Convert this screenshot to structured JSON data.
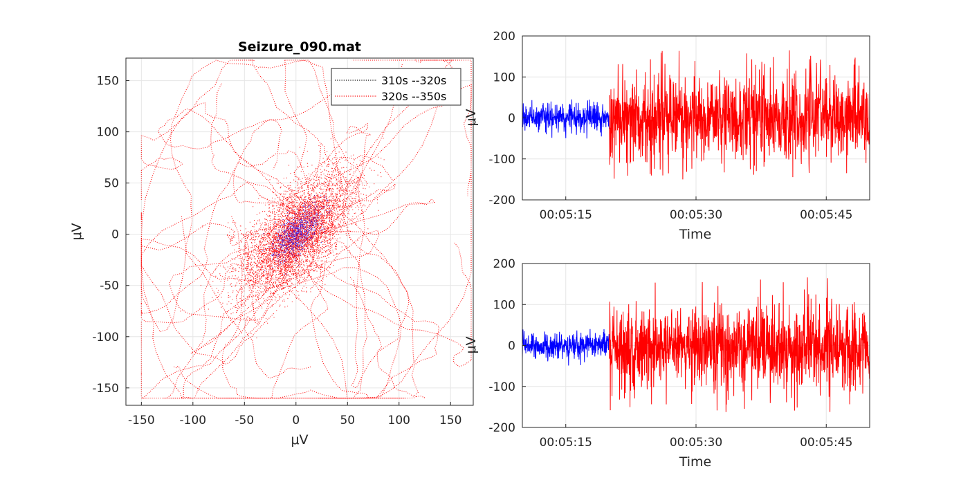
{
  "chart_data": [
    {
      "type": "scatter",
      "title": "Seizure_090.mat",
      "xlabel": "μV",
      "ylabel": "μV",
      "xlim": [
        -165,
        172
      ],
      "ylim": [
        -167,
        172
      ],
      "xticks": [
        -150,
        -100,
        -50,
        0,
        50,
        100,
        150
      ],
      "yticks": [
        -150,
        -100,
        -50,
        0,
        50,
        100,
        150
      ],
      "grid": true,
      "legend": {
        "placement": "top-right",
        "entries": [
          "310s --320s",
          "320s --350s"
        ]
      },
      "series": [
        {
          "name": "310s --320s",
          "color": "#0000ff",
          "style": "dotted",
          "x_range": [
            -40,
            40
          ],
          "y_range": [
            -45,
            40
          ]
        },
        {
          "name": "320s --350s",
          "color": "#ff0000",
          "style": "dotted",
          "x_range": [
            -150,
            170
          ],
          "y_range": [
            -160,
            170
          ]
        }
      ]
    },
    {
      "type": "line",
      "xlabel": "Time",
      "ylabel": "μV",
      "ylim": [
        -200,
        200
      ],
      "yticks": [
        200,
        100,
        0,
        -100,
        -200
      ],
      "xticks": [
        "00:05:15",
        "00:05:30",
        "00:05:45"
      ],
      "x_range": [
        "00:05:10",
        "00:05:50"
      ],
      "grid": true,
      "series": [
        {
          "color": "#0000ff",
          "time_range": [
            "00:05:10",
            "00:05:20"
          ],
          "y_range": [
            -55,
            45
          ]
        },
        {
          "color": "#ff0000",
          "time_range": [
            "00:05:20",
            "00:05:50"
          ],
          "y_range": [
            -150,
            170
          ]
        }
      ]
    },
    {
      "type": "line",
      "xlabel": "Time",
      "ylabel": "μV",
      "ylim": [
        -200,
        200
      ],
      "yticks": [
        200,
        100,
        0,
        -100,
        -200
      ],
      "xticks": [
        "00:05:15",
        "00:05:30",
        "00:05:45"
      ],
      "x_range": [
        "00:05:10",
        "00:05:50"
      ],
      "grid": true,
      "series": [
        {
          "color": "#0000ff",
          "time_range": [
            "00:05:10",
            "00:05:20"
          ],
          "y_range": [
            -50,
            40
          ]
        },
        {
          "color": "#ff0000",
          "time_range": [
            "00:05:20",
            "00:05:50"
          ],
          "y_range": [
            -165,
            170
          ]
        }
      ]
    }
  ]
}
